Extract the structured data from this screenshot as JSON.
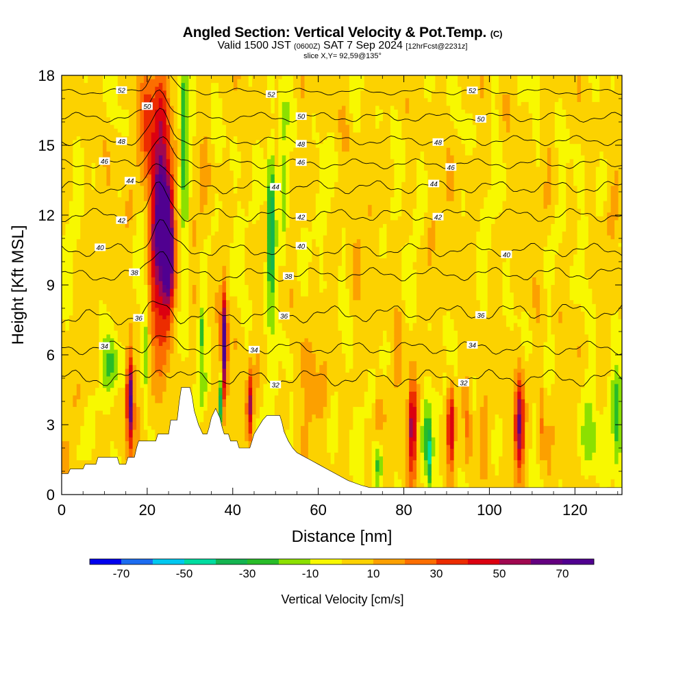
{
  "header": {
    "title": "Angled Section: Vertical Velocity & Pot.Temp.",
    "title_suffix": "(C)",
    "subtitle_valid": "Valid 1500 JST",
    "subtitle_utc": "(0600Z)",
    "subtitle_date": "SAT 7 Sep 2024",
    "subtitle_fcst": "[12hrFcst@2231z]",
    "slice": "slice X,Y= 92,59@135°"
  },
  "chart_data": {
    "type": "heatmap",
    "xlabel": "Distance [nm]",
    "ylabel": "Height [Kft MSL]",
    "xlim": [
      0,
      131
    ],
    "ylim": [
      0,
      18
    ],
    "x_ticks": [
      0,
      20,
      40,
      60,
      80,
      100,
      120
    ],
    "y_ticks": [
      0,
      3,
      6,
      9,
      12,
      15,
      18
    ],
    "grid": false,
    "colorbar": {
      "label": "Vertical Velocity [cm/s]",
      "tick_labels": [
        -70,
        -50,
        -30,
        -10,
        10,
        30,
        50,
        70
      ],
      "bounds": [
        -80,
        -70,
        -60,
        -50,
        -40,
        -30,
        -20,
        -10,
        0,
        10,
        20,
        30,
        40,
        50,
        60,
        70,
        80
      ],
      "colors": [
        "#0000ee",
        "#1c6cf0",
        "#00c8f0",
        "#00dca0",
        "#14b450",
        "#28bc28",
        "#8ce000",
        "#f8f800",
        "#fcd200",
        "#fca000",
        "#fc6e00",
        "#ec2c00",
        "#dc0010",
        "#a00850",
        "#640080",
        "#500090"
      ]
    },
    "terrain_kft": [
      [
        0,
        0.9
      ],
      [
        1.5,
        0.9
      ],
      [
        2,
        1.1
      ],
      [
        5,
        1.1
      ],
      [
        5.5,
        1.3
      ],
      [
        8,
        1.3
      ],
      [
        8.5,
        1.6
      ],
      [
        13,
        1.6
      ],
      [
        13.5,
        1.3
      ],
      [
        15,
        1.3
      ],
      [
        15.5,
        1.6
      ],
      [
        17,
        1.6
      ],
      [
        17.5,
        2.0
      ],
      [
        18,
        2.3
      ],
      [
        22,
        2.3
      ],
      [
        22.5,
        2.6
      ],
      [
        25,
        2.6
      ],
      [
        25.5,
        3.2
      ],
      [
        27,
        3.2
      ],
      [
        27.5,
        4.0
      ],
      [
        28,
        4.6
      ],
      [
        30,
        4.6
      ],
      [
        30.5,
        4.2
      ],
      [
        31,
        3.6
      ],
      [
        32,
        3.0
      ],
      [
        33,
        2.6
      ],
      [
        34,
        2.6
      ],
      [
        34.5,
        2.9
      ],
      [
        35,
        3.3
      ],
      [
        36,
        3.7
      ],
      [
        37,
        3.3
      ],
      [
        37.5,
        2.9
      ],
      [
        38,
        2.6
      ],
      [
        39,
        2.6
      ],
      [
        39.5,
        2.3
      ],
      [
        41,
        2.3
      ],
      [
        41.5,
        2.0
      ],
      [
        44,
        2.0
      ],
      [
        44.5,
        2.3
      ],
      [
        45,
        2.6
      ],
      [
        46,
        2.9
      ],
      [
        47,
        3.2
      ],
      [
        48,
        3.4
      ],
      [
        51,
        3.4
      ],
      [
        51.5,
        3.1
      ],
      [
        52,
        2.7
      ],
      [
        53,
        2.3
      ],
      [
        54,
        2.0
      ],
      [
        55,
        1.8
      ],
      [
        56,
        1.7
      ],
      [
        57,
        1.6
      ],
      [
        58,
        1.5
      ],
      [
        59,
        1.4
      ],
      [
        60,
        1.3
      ],
      [
        62,
        1.1
      ],
      [
        64,
        0.9
      ],
      [
        67,
        0.6
      ],
      [
        70,
        0.4
      ],
      [
        72,
        0.3
      ],
      [
        75,
        0.3
      ],
      [
        131,
        0.3
      ]
    ],
    "updrafts": [
      {
        "x": 23,
        "y": 12.0,
        "peak": 78,
        "sx": 1.6,
        "sy": 3.4
      },
      {
        "x": 25,
        "y": 10.4,
        "peak": 62,
        "sx": 1.0,
        "sy": 2.0
      },
      {
        "x": 16,
        "y": 4.1,
        "peak": 78,
        "sx": 0.6,
        "sy": 1.4
      },
      {
        "x": 38,
        "y": 6.5,
        "peak": 72,
        "sx": 0.5,
        "sy": 1.6
      },
      {
        "x": 44,
        "y": 3.8,
        "peak": 48,
        "sx": 0.5,
        "sy": 1.1
      },
      {
        "x": 82,
        "y": 3.0,
        "peak": 52,
        "sx": 0.7,
        "sy": 1.5
      },
      {
        "x": 91,
        "y": 2.9,
        "peak": 52,
        "sx": 0.6,
        "sy": 1.4
      },
      {
        "x": 107,
        "y": 3.0,
        "peak": 62,
        "sx": 0.8,
        "sy": 1.6
      },
      {
        "x": 95,
        "y": 3.0,
        "peak": 20,
        "sx": 0.6,
        "sy": 1.2
      },
      {
        "x": 112,
        "y": 3.2,
        "peak": 22,
        "sx": 0.6,
        "sy": 1.2
      },
      {
        "x": 74,
        "y": 3.3,
        "peak": 14,
        "sx": 0.6,
        "sy": 1.2
      },
      {
        "x": 58,
        "y": 5.2,
        "peak": 16,
        "sx": 1.2,
        "sy": 1.2
      },
      {
        "x": 20,
        "y": 16.0,
        "peak": 35,
        "sx": 1.2,
        "sy": 1.5
      }
    ],
    "downdrafts": [
      {
        "x": 49,
        "y": 11.5,
        "peak": -52,
        "sx": 0.7,
        "sy": 2.3
      },
      {
        "x": 37,
        "y": 4.0,
        "peak": -48,
        "sx": 0.35,
        "sy": 0.9
      },
      {
        "x": 28.5,
        "y": 15.5,
        "peak": -32,
        "sx": 0.6,
        "sy": 2.2
      },
      {
        "x": 32.5,
        "y": 7.0,
        "peak": -30,
        "sx": 0.35,
        "sy": 0.8
      },
      {
        "x": 86,
        "y": 1.6,
        "peak": -36,
        "sx": 0.5,
        "sy": 1.0
      },
      {
        "x": 74,
        "y": 1.4,
        "peak": -28,
        "sx": 0.8,
        "sy": 0.8
      },
      {
        "x": 85,
        "y": 3.0,
        "peak": -20,
        "sx": 0.8,
        "sy": 1.3
      },
      {
        "x": 123,
        "y": 2.6,
        "peak": -25,
        "sx": 1.2,
        "sy": 1.3
      },
      {
        "x": 130,
        "y": 3.0,
        "peak": -30,
        "sx": 0.8,
        "sy": 1.4
      },
      {
        "x": 12,
        "y": 5.5,
        "peak": -20,
        "sx": 2.0,
        "sy": 0.8
      },
      {
        "x": 19.5,
        "y": 6.0,
        "peak": -22,
        "sx": 0.6,
        "sy": 2.2
      },
      {
        "x": 52,
        "y": 13.5,
        "peak": -18,
        "sx": 0.8,
        "sy": 2.5
      },
      {
        "x": 29,
        "y": 10.5,
        "peak": -14,
        "sx": 0.6,
        "sy": 2.5
      },
      {
        "x": 33,
        "y": 4.5,
        "peak": -18,
        "sx": 0.5,
        "sy": 0.8
      }
    ],
    "theta_contours": [
      {
        "label": 32,
        "y": 5.0,
        "rise": 0.0,
        "amp": 0.25,
        "labels_at": [
          50,
          94
        ]
      },
      {
        "label": 34,
        "y": 6.3,
        "rise": 0.0,
        "amp": 0.2,
        "labels_at": [
          10,
          45,
          96
        ]
      },
      {
        "label": 36,
        "y": 7.6,
        "rise": 0.3,
        "amp": 0.25,
        "labels_at": [
          18,
          52,
          98
        ]
      },
      {
        "label": 38,
        "y": 9.4,
        "rise": 0.1,
        "amp": 0.2,
        "labels_at": [
          17,
          53
        ]
      },
      {
        "label": 40,
        "y": 10.5,
        "rise": 0.0,
        "amp": 0.2,
        "labels_at": [
          9,
          56,
          104
        ]
      },
      {
        "label": 42,
        "y": 12.0,
        "rise": 0.0,
        "amp": 0.2,
        "labels_at": [
          14,
          56,
          88
        ]
      },
      {
        "label": 44,
        "y": 13.2,
        "rise": 0.0,
        "amp": 0.2,
        "labels_at": [
          16,
          50,
          87
        ]
      },
      {
        "label": 46,
        "y": 14.2,
        "rise": 0.0,
        "amp": 0.15,
        "labels_at": [
          10,
          56,
          91
        ]
      },
      {
        "label": 48,
        "y": 15.2,
        "rise": 0.0,
        "amp": 0.15,
        "labels_at": [
          14,
          56,
          88
        ]
      },
      {
        "label": 50,
        "y": 16.2,
        "rise": 0.0,
        "amp": 0.15,
        "labels_at": [
          20,
          56,
          98
        ]
      },
      {
        "label": 52,
        "y": 17.3,
        "rise": 0.0,
        "amp": 0.1,
        "labels_at": [
          14,
          49,
          96
        ]
      }
    ]
  }
}
